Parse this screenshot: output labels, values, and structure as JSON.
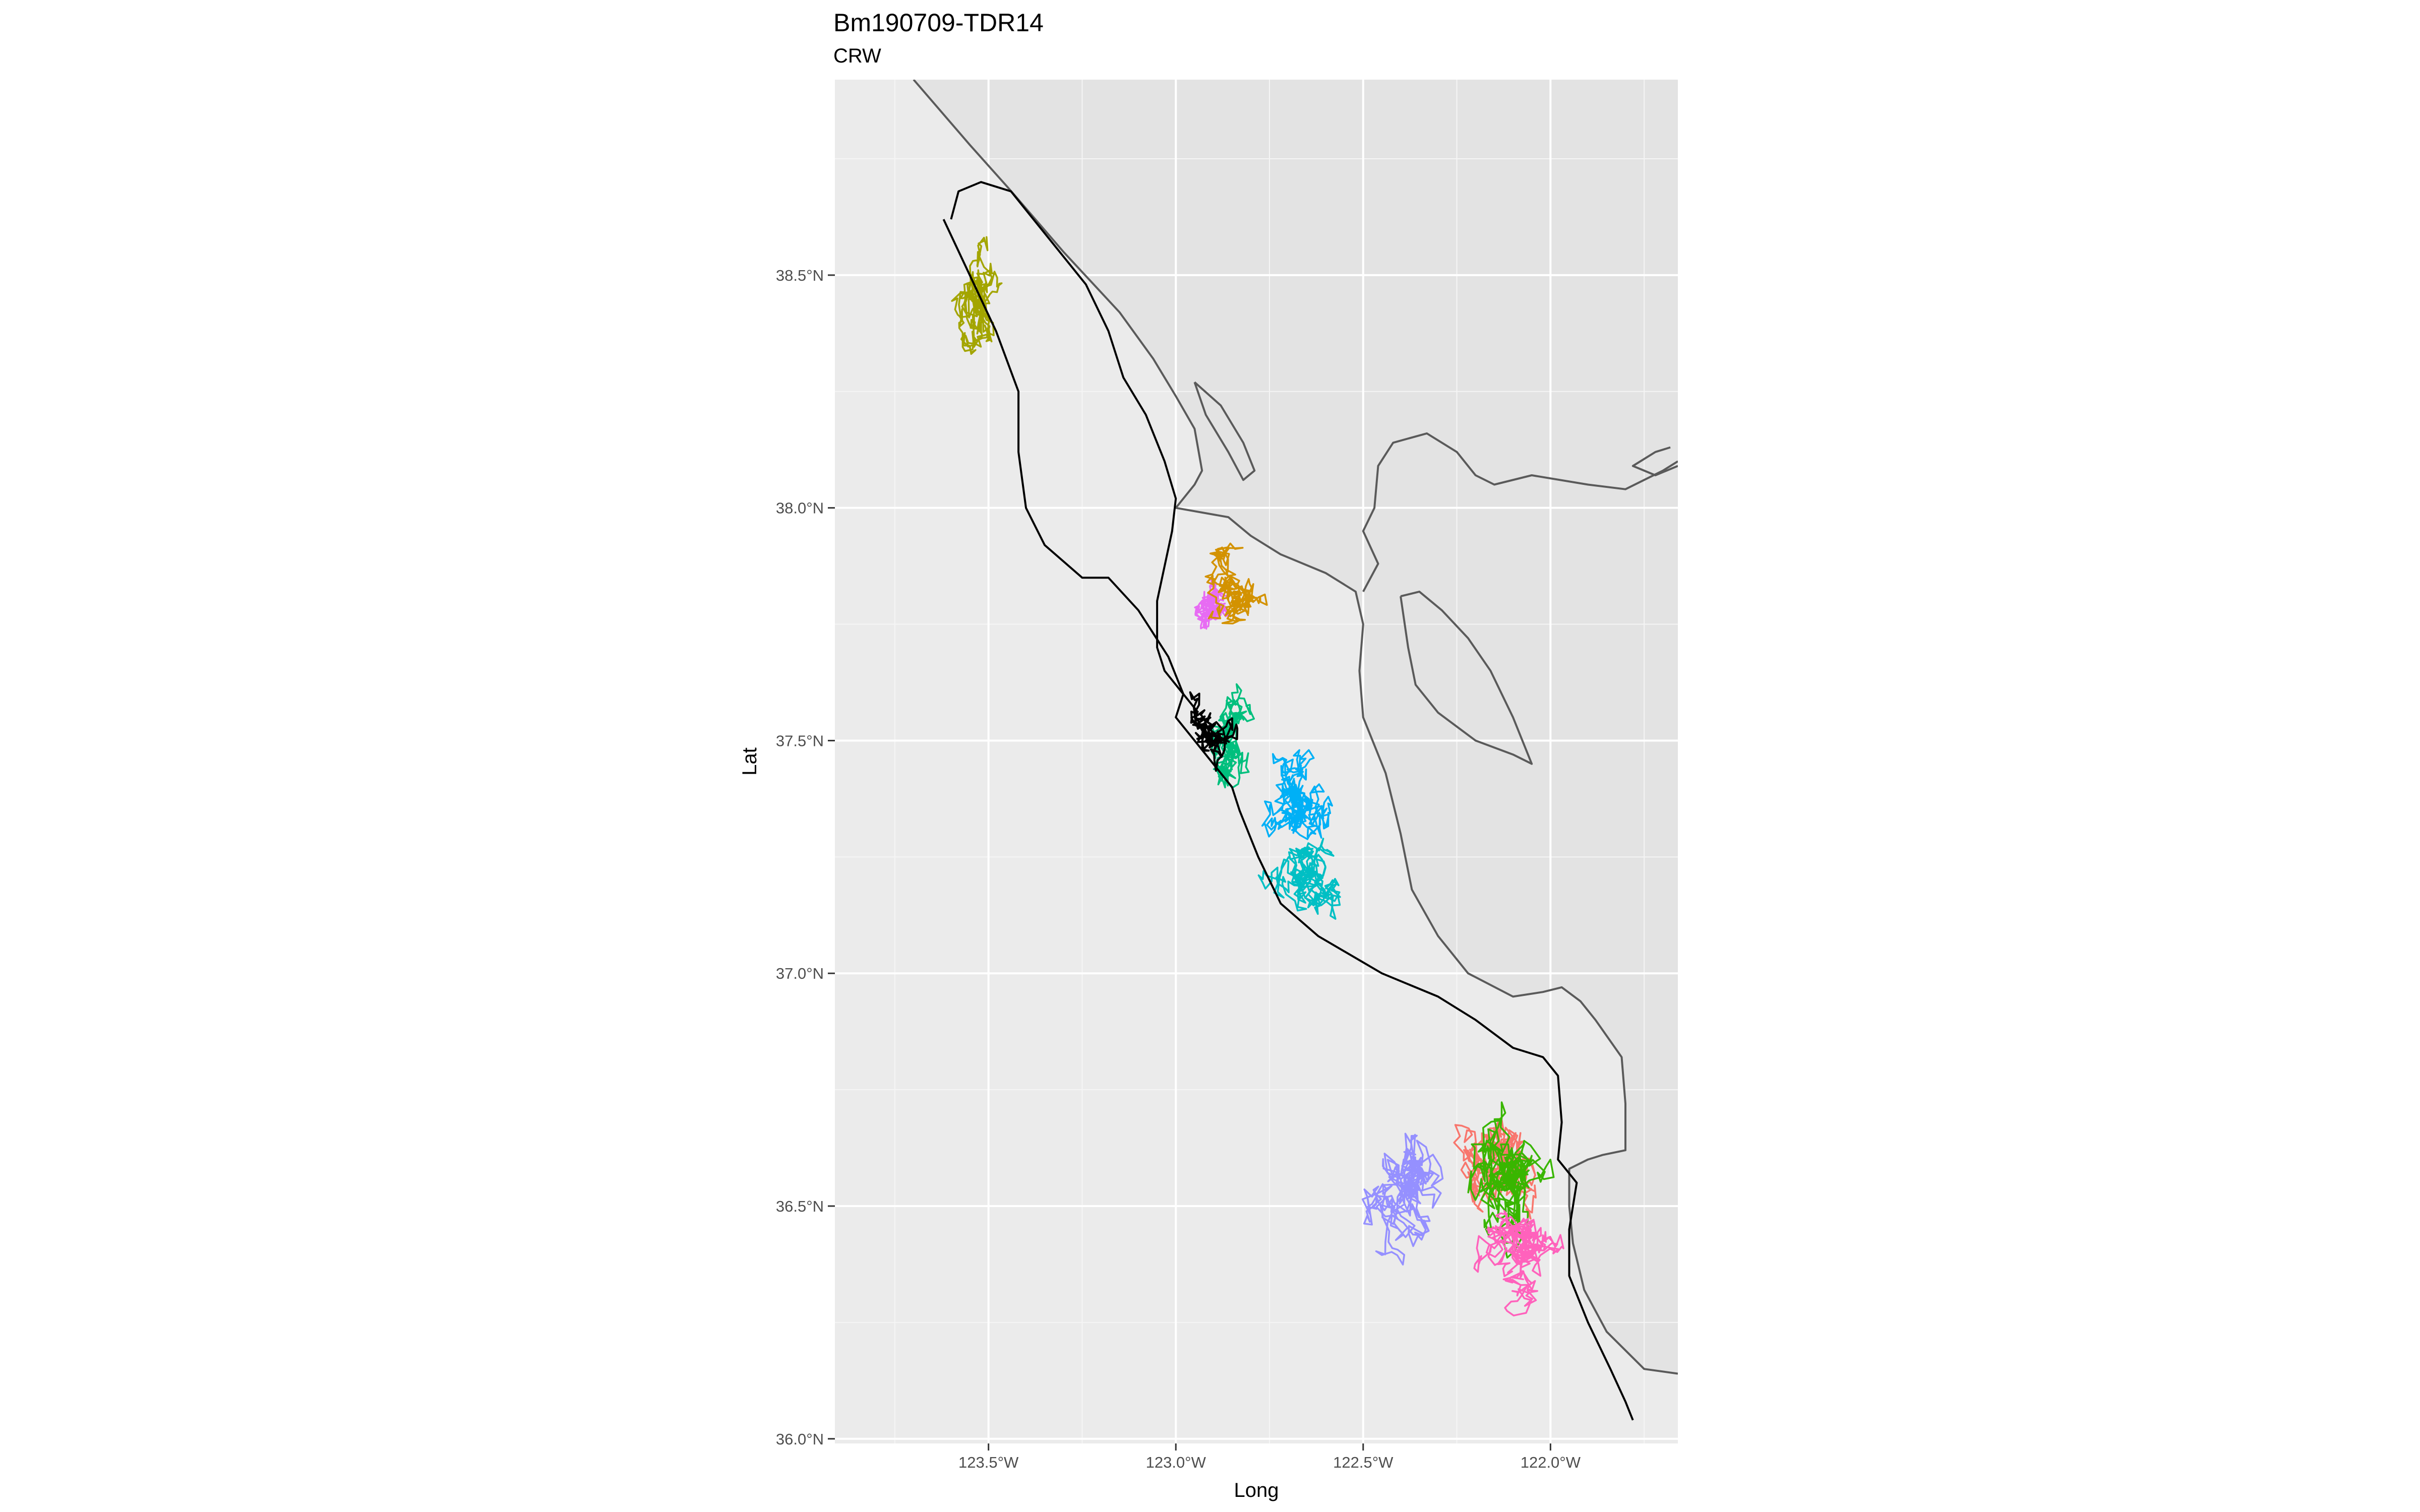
{
  "title": "Bm190709-TDR14",
  "subtitle": "CRW",
  "colors": {
    "panel": "#ebebeb",
    "land": "#e3e3e3",
    "grid": "#ffffff",
    "coast": "#5a5a5a",
    "track": "#000000"
  },
  "chart_data": {
    "type": "map",
    "title": "Bm190709-TDR14",
    "subtitle": "CRW",
    "xlabel": "Long",
    "ylabel": "Lat",
    "xlim": [
      -123.91,
      -121.66
    ],
    "ylim": [
      35.99,
      38.92
    ],
    "grid": true,
    "x_ticks": [
      {
        "value": -123.5,
        "label": "123.5°W"
      },
      {
        "value": -123.0,
        "label": "123.0°W"
      },
      {
        "value": -122.5,
        "label": "122.5°W"
      },
      {
        "value": -122.0,
        "label": "122.0°W"
      }
    ],
    "y_ticks": [
      {
        "value": 36.0,
        "label": "36.0°N"
      },
      {
        "value": 36.5,
        "label": "36.5°N"
      },
      {
        "value": 37.0,
        "label": "37.0°N"
      },
      {
        "value": 37.5,
        "label": "37.5°N"
      },
      {
        "value": 38.0,
        "label": "38.0°N"
      },
      {
        "value": 38.5,
        "label": "38.5°N"
      }
    ],
    "coastline": [
      [
        [
          -123.7,
          38.92
        ],
        [
          -123.55,
          38.78
        ],
        [
          -123.45,
          38.69
        ],
        [
          -123.3,
          38.55
        ],
        [
          -123.15,
          38.42
        ],
        [
          -123.06,
          38.32
        ],
        [
          -123.0,
          38.24
        ],
        [
          -122.95,
          38.17
        ],
        [
          -122.93,
          38.08
        ],
        [
          -122.95,
          38.05
        ],
        [
          -123.0,
          38.0
        ],
        [
          -122.86,
          37.98
        ],
        [
          -122.8,
          37.94
        ],
        [
          -122.72,
          37.9
        ],
        [
          -122.6,
          37.86
        ],
        [
          -122.52,
          37.82
        ],
        [
          -122.5,
          37.75
        ],
        [
          -122.51,
          37.65
        ],
        [
          -122.5,
          37.55
        ],
        [
          -122.44,
          37.43
        ],
        [
          -122.4,
          37.3
        ],
        [
          -122.37,
          37.18
        ],
        [
          -122.3,
          37.08
        ],
        [
          -122.22,
          37.0
        ],
        [
          -122.1,
          36.95
        ],
        [
          -122.02,
          36.96
        ],
        [
          -121.97,
          36.97
        ],
        [
          -121.92,
          36.94
        ],
        [
          -121.88,
          36.9
        ],
        [
          -121.81,
          36.82
        ],
        [
          -121.8,
          36.72
        ],
        [
          -121.8,
          36.62
        ],
        [
          -121.86,
          36.61
        ],
        [
          -121.9,
          36.6
        ],
        [
          -121.95,
          36.58
        ],
        [
          -121.95,
          36.5
        ],
        [
          -121.94,
          36.42
        ],
        [
          -121.91,
          36.32
        ],
        [
          -121.85,
          36.23
        ],
        [
          -121.75,
          36.15
        ],
        [
          -121.66,
          36.14
        ]
      ],
      [
        [
          -122.95,
          38.27
        ],
        [
          -122.88,
          38.22
        ],
        [
          -122.82,
          38.14
        ],
        [
          -122.79,
          38.08
        ],
        [
          -122.82,
          38.06
        ],
        [
          -122.86,
          38.12
        ],
        [
          -122.92,
          38.2
        ],
        [
          -122.95,
          38.27
        ]
      ],
      [
        [
          -122.5,
          37.82
        ],
        [
          -122.46,
          37.88
        ],
        [
          -122.5,
          37.95
        ],
        [
          -122.47,
          38.0
        ],
        [
          -122.46,
          38.09
        ],
        [
          -122.42,
          38.14
        ],
        [
          -122.33,
          38.16
        ],
        [
          -122.25,
          38.12
        ],
        [
          -122.2,
          38.07
        ],
        [
          -122.15,
          38.05
        ],
        [
          -122.05,
          38.07
        ],
        [
          -121.9,
          38.05
        ],
        [
          -121.8,
          38.04
        ],
        [
          -121.7,
          38.08
        ],
        [
          -121.66,
          38.1
        ]
      ],
      [
        [
          -122.4,
          37.81
        ],
        [
          -122.38,
          37.7
        ],
        [
          -122.36,
          37.62
        ],
        [
          -122.3,
          37.56
        ],
        [
          -122.2,
          37.5
        ],
        [
          -122.1,
          37.47
        ],
        [
          -122.05,
          37.45
        ],
        [
          -122.1,
          37.55
        ],
        [
          -122.16,
          37.65
        ],
        [
          -122.22,
          37.72
        ],
        [
          -122.29,
          37.78
        ],
        [
          -122.35,
          37.82
        ],
        [
          -122.4,
          37.81
        ]
      ],
      [
        [
          -121.66,
          38.09
        ],
        [
          -121.72,
          38.07
        ],
        [
          -121.78,
          38.09
        ],
        [
          -121.72,
          38.12
        ],
        [
          -121.68,
          38.13
        ]
      ]
    ],
    "series": [
      {
        "color": "#A3A500",
        "seed": 11,
        "center": [
          -123.52,
          38.46
        ],
        "spread": [
          0.07,
          0.13
        ],
        "n": 260
      },
      {
        "color": "#E76BF3",
        "seed": 23,
        "center": [
          -122.9,
          37.79
        ],
        "spread": [
          0.05,
          0.05
        ],
        "n": 320
      },
      {
        "color": "#D39200",
        "seed": 37,
        "center": [
          -122.86,
          37.8
        ],
        "spread": [
          0.1,
          0.08
        ],
        "n": 220
      },
      {
        "color": "#00BF7D",
        "seed": 41,
        "center": [
          -122.86,
          37.47
        ],
        "spread": [
          0.08,
          0.11
        ],
        "n": 240
      },
      {
        "color": "#00B0F6",
        "seed": 53,
        "center": [
          -122.68,
          37.37
        ],
        "spread": [
          0.09,
          0.11
        ],
        "n": 300
      },
      {
        "color": "#00BFC4",
        "seed": 61,
        "center": [
          -122.64,
          37.2
        ],
        "spread": [
          0.1,
          0.1
        ],
        "n": 260
      },
      {
        "color": "#9590FF",
        "seed": 71,
        "center": [
          -122.37,
          36.56
        ],
        "spread": [
          0.13,
          0.14
        ],
        "n": 280
      },
      {
        "color": "#F8766D",
        "seed": 79,
        "center": [
          -122.13,
          36.58
        ],
        "spread": [
          0.1,
          0.14
        ],
        "n": 300
      },
      {
        "color": "#39B600",
        "seed": 83,
        "center": [
          -122.1,
          36.58
        ],
        "spread": [
          0.12,
          0.18
        ],
        "n": 280
      },
      {
        "color": "#FF62BC",
        "seed": 97,
        "center": [
          -122.1,
          36.43
        ],
        "spread": [
          0.12,
          0.1
        ],
        "n": 300
      }
    ],
    "track": [
      [
        -123.62,
        38.62
      ],
      [
        -123.55,
        38.5
      ],
      [
        -123.48,
        38.38
      ],
      [
        -123.42,
        38.25
      ],
      [
        -123.42,
        38.12
      ],
      [
        -123.4,
        38.0
      ],
      [
        -123.35,
        37.92
      ],
      [
        -123.25,
        37.85
      ],
      [
        -123.18,
        37.85
      ],
      [
        -123.1,
        37.78
      ],
      [
        -123.02,
        37.68
      ],
      [
        -122.98,
        37.6
      ],
      [
        -123.0,
        37.55
      ],
      [
        -122.95,
        37.5
      ],
      [
        -122.9,
        37.45
      ],
      [
        -122.85,
        37.4
      ],
      [
        -122.83,
        37.35
      ],
      [
        -122.78,
        37.25
      ],
      [
        -122.72,
        37.15
      ],
      [
        -122.62,
        37.08
      ],
      [
        -122.45,
        37.0
      ],
      [
        -122.3,
        36.95
      ],
      [
        -122.2,
        36.9
      ],
      [
        -122.1,
        36.84
      ],
      [
        -122.02,
        36.82
      ],
      [
        -121.98,
        36.78
      ],
      [
        -121.97,
        36.68
      ],
      [
        -121.98,
        36.6
      ],
      [
        -121.93,
        36.55
      ],
      [
        -121.95,
        36.45
      ],
      [
        -121.95,
        36.35
      ],
      [
        -121.9,
        36.25
      ],
      [
        -121.84,
        36.15
      ],
      [
        -121.8,
        36.08
      ],
      [
        -121.78,
        36.04
      ]
    ],
    "track_main": [
      [
        -123.6,
        38.62
      ],
      [
        -123.58,
        38.68
      ],
      [
        -123.52,
        38.7
      ],
      [
        -123.44,
        38.68
      ],
      [
        -123.38,
        38.62
      ],
      [
        -123.32,
        38.56
      ],
      [
        -123.24,
        38.48
      ],
      [
        -123.18,
        38.38
      ],
      [
        -123.14,
        38.28
      ],
      [
        -123.08,
        38.2
      ],
      [
        -123.03,
        38.1
      ],
      [
        -123.0,
        38.02
      ],
      [
        -123.01,
        37.95
      ],
      [
        -123.05,
        37.8
      ],
      [
        -123.05,
        37.7
      ],
      [
        -123.03,
        37.65
      ],
      [
        -122.98,
        37.6
      ],
      [
        -122.94,
        37.56
      ]
    ],
    "track_loops": {
      "center": [
        -122.93,
        37.48
      ],
      "spread": [
        0.08,
        0.09
      ],
      "seed": 5,
      "n": 160
    }
  }
}
